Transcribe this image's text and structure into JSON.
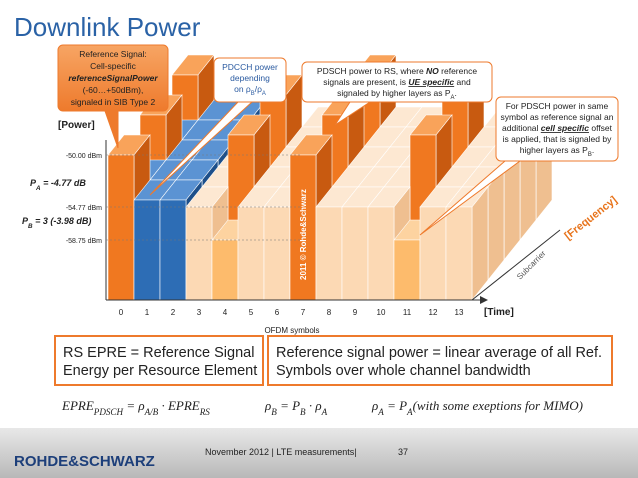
{
  "title": "Downlink Power",
  "callouts": [
    {
      "lines": [
        [
          "Reference Signal:"
        ],
        [
          "Cell-specific"
        ],
        [
          "referenceSignalPower"
        ],
        [
          "(-60…+50dBm),"
        ],
        [
          "signaled in SIB Type 2"
        ]
      ]
    },
    {
      "lines": [
        [
          "PDCCH power"
        ],
        [
          "depending"
        ],
        [
          "on ρ",
          "B",
          "/ρ",
          "A"
        ]
      ]
    },
    {
      "lines": [
        [
          "PDSCH power to RS, where ",
          "NO",
          " reference"
        ],
        [
          "signals are present, is ",
          "UE specific",
          " and"
        ],
        [
          "signaled by higher layers as P",
          "A",
          "."
        ]
      ]
    },
    {
      "lines": [
        [
          "For PDSCH power in same"
        ],
        [
          "symbol as reference signal an"
        ],
        [
          "additional ",
          "cell specific",
          " offset"
        ],
        [
          "is applied, that is signaled by"
        ],
        [
          "higher layers as P",
          "B",
          "."
        ]
      ]
    }
  ],
  "axis": {
    "power": "[Power]",
    "time": "[Time]",
    "frequency": "[Frequency]",
    "subcarrier": "Subcarrier",
    "ofdm": "OFDM symbols",
    "symbols": [
      0,
      1,
      2,
      3,
      4,
      5,
      6,
      7,
      8,
      9,
      10,
      11,
      12,
      13
    ]
  },
  "levels": [
    "-50.00 dBm",
    "-54.77 dBm",
    "-58.75 dBm"
  ],
  "pa": [
    "P",
    "A",
    " = -4.77 dB"
  ],
  "pb": [
    "P",
    "B",
    " = 3 (-3.98 dB)"
  ],
  "copyright": "2011 © Rohde&Schwarz",
  "boxes": [
    [
      "RS EPRE = Reference Signal",
      "Energy per Resource Element"
    ],
    [
      "Reference signal power = linear average of all Ref.",
      "Symbols over whole channel bandwidth"
    ]
  ],
  "formulas": [
    [
      "EPRE",
      "PDSCH",
      " = ρ",
      "A/B",
      " · EPRE",
      "RS"
    ],
    [
      "ρ",
      "B",
      " = P",
      "B",
      " · ρ",
      "A"
    ],
    [
      "ρ",
      "A",
      " = P",
      "A",
      "(with some exeptions for MIMO)"
    ]
  ],
  "footer": {
    "date": "November 2012 | LTE measurements|",
    "page": "37",
    "logo": "ROHDE&SCHWARZ"
  }
}
